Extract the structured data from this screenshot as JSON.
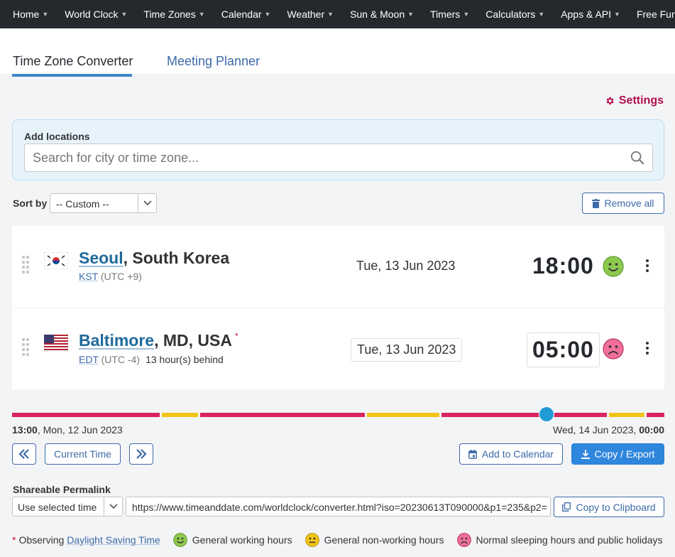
{
  "nav": {
    "items": [
      "Home",
      "World Clock",
      "Time Zones",
      "Calendar",
      "Weather",
      "Sun & Moon",
      "Timers",
      "Calculators",
      "Apps & API",
      "Free Fun"
    ]
  },
  "tabs": {
    "converter": "Time Zone Converter",
    "planner": "Meeting Planner"
  },
  "settings_label": "Settings",
  "add_locations": {
    "label": "Add locations",
    "placeholder": "Search for city or time zone..."
  },
  "sort": {
    "label": "Sort by",
    "value": "-- Custom --"
  },
  "remove_all_label": "Remove all",
  "locations": [
    {
      "city": "Seoul",
      "region": ", South Korea",
      "tz_abbr": "KST",
      "utc": "(UTC +9)",
      "offset_note": "",
      "date": "Tue, 13 Jun 2023",
      "time": "18:00",
      "status": "working"
    },
    {
      "city": "Baltimore",
      "region": ", MD, USA",
      "dst_marker": "*",
      "tz_abbr": "EDT",
      "utc": "(UTC -4)",
      "offset_note": "13 hour(s) behind",
      "date": "Tue, 13 Jun 2023",
      "time": "05:00",
      "status": "sleeping"
    }
  ],
  "timeline": {
    "start_time": "13:00",
    "start_date": ", Mon, 12 Jun 2023",
    "end_date": "Wed, 14 Jun 2023, ",
    "end_time": "00:00",
    "selected_fraction": 0.819,
    "colors": {
      "sleep": "#d8245f",
      "nonwork": "#f2c418",
      "work": "#7cbf4a"
    }
  },
  "buttons": {
    "prev": "«",
    "current_time": "Current Time",
    "next": "»",
    "add_to_calendar": "Add to Calendar",
    "copy_export": "Copy / Export",
    "copy_clipboard": "Copy to Clipboard"
  },
  "permalink": {
    "label": "Shareable Permalink",
    "select_value": "Use selected time",
    "url": "https://www.timeanddate.com/worldclock/converter.html?iso=20230613T090000&p1=235&p2="
  },
  "legend": {
    "dst_star": "*",
    "observing": "Observing",
    "dst_link": "Daylight Saving Time",
    "working": "General working hours",
    "nonworking": "General non-working hours",
    "sleeping": "Normal sleeping hours and public holidays"
  },
  "colors": {
    "nav_bg": "#25292e",
    "accent_red": "#b10e4d",
    "link_blue": "#3d6aa8",
    "primary_button": "#2f86dd",
    "face_green": "#8dc94f",
    "face_yellow": "#f2c418",
    "face_pink": "#f0709a"
  }
}
